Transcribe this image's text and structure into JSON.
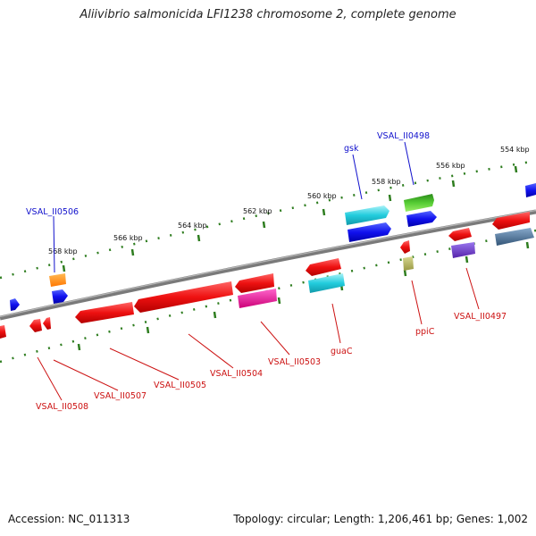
{
  "title": "Aliivibrio salmonicida LFI1238 chromosome 2, complete genome",
  "accession": "Accession: NC_011313",
  "summary": "Topology: circular; Length: 1,206,461 bp; Genes: 1,002",
  "kbp_ticks": [
    "554 kbp",
    "556 kbp",
    "558 kbp",
    "560 kbp",
    "562 kbp",
    "564 kbp",
    "566 kbp",
    "568 kbp"
  ],
  "labels": {
    "gsk": "gsk",
    "vsal_ii0498": "VSAL_II0498",
    "vsal_ii0506": "VSAL_II0506",
    "vsal_ii0497": "VSAL_II0497",
    "ppic": "ppiC",
    "guac": "guaC",
    "vsal_ii0503": "VSAL_II0503",
    "vsal_ii0504": "VSAL_II0504",
    "vsal_ii0505": "VSAL_II0505",
    "vsal_ii0507": "VSAL_II0507",
    "vsal_ii0508": "VSAL_II0508"
  },
  "colors": {
    "backbone": "#808080",
    "tick": "#2e7d1f",
    "red": "#ee1111",
    "blue": "#1111ee",
    "cyan": "#22ccdd",
    "green": "#33aa22",
    "orange": "#ff8c00",
    "magenta": "#ee1199",
    "purple": "#7744cc",
    "steel": "#4477aa",
    "olive": "#aaaa55",
    "label_blue": "#1111cc",
    "label_red": "#cc1111"
  }
}
